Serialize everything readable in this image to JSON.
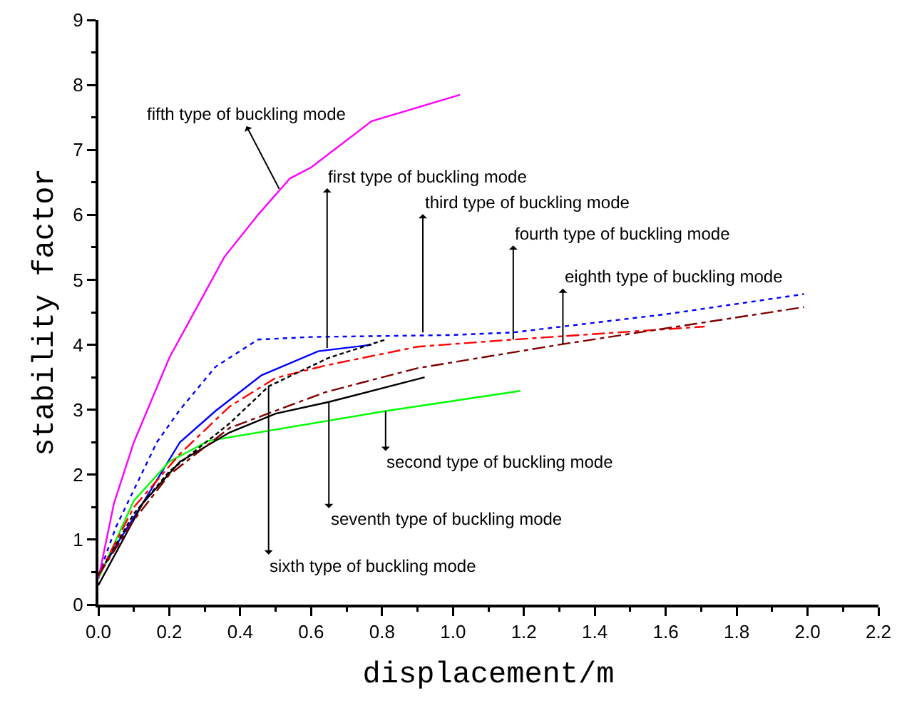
{
  "chart_data": {
    "type": "line",
    "xlabel": "displacement/m",
    "ylabel": "stability factor",
    "xlim": [
      0,
      2.2
    ],
    "xticks": [
      {
        "value": 0,
        "label": "0.0"
      },
      0.2,
      0.4,
      0.6,
      0.8,
      {
        "value": 1,
        "label": "1.0"
      },
      1.2,
      1.4,
      1.6,
      1.8,
      {
        "value": 2,
        "label": "2.0"
      },
      2.2
    ],
    "ylim": [
      0,
      9
    ],
    "yticks": [
      0,
      1,
      2,
      3,
      4,
      5,
      6,
      7,
      8,
      9
    ],
    "grid": false,
    "marker": "none",
    "series": [
      {
        "color": "#0000ff",
        "line_style": "solid",
        "x": [
          0,
          0.06,
          0.125,
          0.23,
          0.33,
          0.46,
          0.62,
          0.77
        ],
        "values": [
          0.45,
          1.0,
          1.56,
          2.5,
          2.98,
          3.53,
          3.9,
          4.0
        ]
      },
      {
        "color": "#00ff00",
        "line_style": "solid",
        "x": [
          0,
          0.1,
          0.2,
          0.31,
          0.81,
          1.19
        ],
        "values": [
          0.4,
          1.6,
          2.2,
          2.52,
          2.98,
          3.29
        ]
      },
      {
        "color": "#0000ff",
        "line_style": "dotted",
        "x": [
          0,
          0.05,
          0.165,
          0.23,
          0.33,
          0.45,
          0.6,
          1.0,
          1.17,
          1.6,
          1.99
        ],
        "values": [
          0.45,
          1.2,
          2.5,
          3.0,
          3.66,
          4.08,
          4.12,
          4.15,
          4.19,
          4.47,
          4.78
        ]
      },
      {
        "color": "#ff0000",
        "line_style": "dashdot",
        "x": [
          0,
          0.1,
          0.23,
          0.37,
          0.5,
          0.64,
          0.9,
          1.17,
          1.71
        ],
        "values": [
          0.45,
          1.5,
          2.32,
          3.05,
          3.49,
          3.68,
          3.97,
          4.08,
          4.28
        ]
      },
      {
        "color": "#ff00ff",
        "line_style": "solid",
        "x": [
          0,
          0.044,
          0.1,
          0.2,
          0.31,
          0.355,
          0.45,
          0.54,
          0.6,
          0.77,
          1.02
        ],
        "values": [
          0.4,
          1.56,
          2.5,
          3.8,
          4.9,
          5.35,
          6.0,
          6.56,
          6.73,
          7.44,
          7.85
        ]
      },
      {
        "color": "#000000",
        "line_style": "dashed",
        "x": [
          0,
          0.1,
          0.2,
          0.37,
          0.48,
          0.65,
          0.81
        ],
        "values": [
          0.45,
          1.4,
          2.05,
          2.79,
          3.36,
          3.8,
          4.08
        ]
      },
      {
        "color": "#000000",
        "line_style": "solid",
        "x": [
          0,
          0.125,
          0.23,
          0.37,
          0.5,
          0.65,
          0.92
        ],
        "values": [
          0.3,
          1.56,
          2.2,
          2.65,
          2.94,
          3.12,
          3.5
        ]
      },
      {
        "color": "#800000",
        "line_style": "dashdot",
        "x": [
          0,
          0.1,
          0.2,
          0.37,
          0.64,
          0.9,
          1.31,
          1.99
        ],
        "values": [
          0.45,
          1.3,
          2.0,
          2.72,
          3.27,
          3.64,
          4.01,
          4.58
        ]
      }
    ],
    "annotations": [
      {
        "text": "fifth type of buckling mode",
        "x": 0.51,
        "y": 6.4
      },
      {
        "text": "first type of buckling mode",
        "x": 0.645,
        "y": 3.95
      },
      {
        "text": "third type of buckling mode",
        "x": 0.915,
        "y": 4.19
      },
      {
        "text": "fourth type of buckling mode",
        "x": 1.17,
        "y": 4.08
      },
      {
        "text": "eighth type of buckling mode",
        "x": 1.31,
        "y": 4.01
      },
      {
        "text": "second type of buckling mode",
        "x": 0.81,
        "y": 2.98
      },
      {
        "text": "seventh type of buckling mode",
        "x": 0.65,
        "y": 3.11
      },
      {
        "text": "sixth type of buckling mode",
        "x": 0.48,
        "y": 3.36
      }
    ]
  }
}
